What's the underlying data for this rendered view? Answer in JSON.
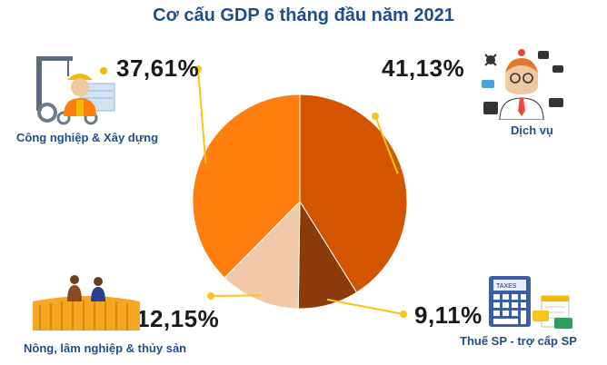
{
  "chart_data": {
    "type": "pie",
    "title": "Cơ cấu GDP 6 tháng đầu năm 2021",
    "slices": [
      {
        "name": "Dịch vụ",
        "value": 41.13,
        "label": "41,13%",
        "color": "#d45500"
      },
      {
        "name": "Thuế SP - trợ cấp SP",
        "value": 9.11,
        "label": "9,11%",
        "color": "#8b3a0a"
      },
      {
        "name": "Nông, lâm nghiệp & thủy sản",
        "value": 12.15,
        "label": "12,15%",
        "color": "#f2c9a8"
      },
      {
        "name": "Công nghiệp & Xây dựng",
        "value": 37.61,
        "label": "37,61%",
        "color": "#ff7f0e"
      }
    ],
    "leader_color": "#f5c518",
    "legend": "none"
  },
  "icons": {
    "industry": "construction-worker-gears-icon",
    "services": "office-worker-tools-icon",
    "agriculture": "farmers-rice-field-icon",
    "taxes": "calculator-tax-documents-icon"
  }
}
